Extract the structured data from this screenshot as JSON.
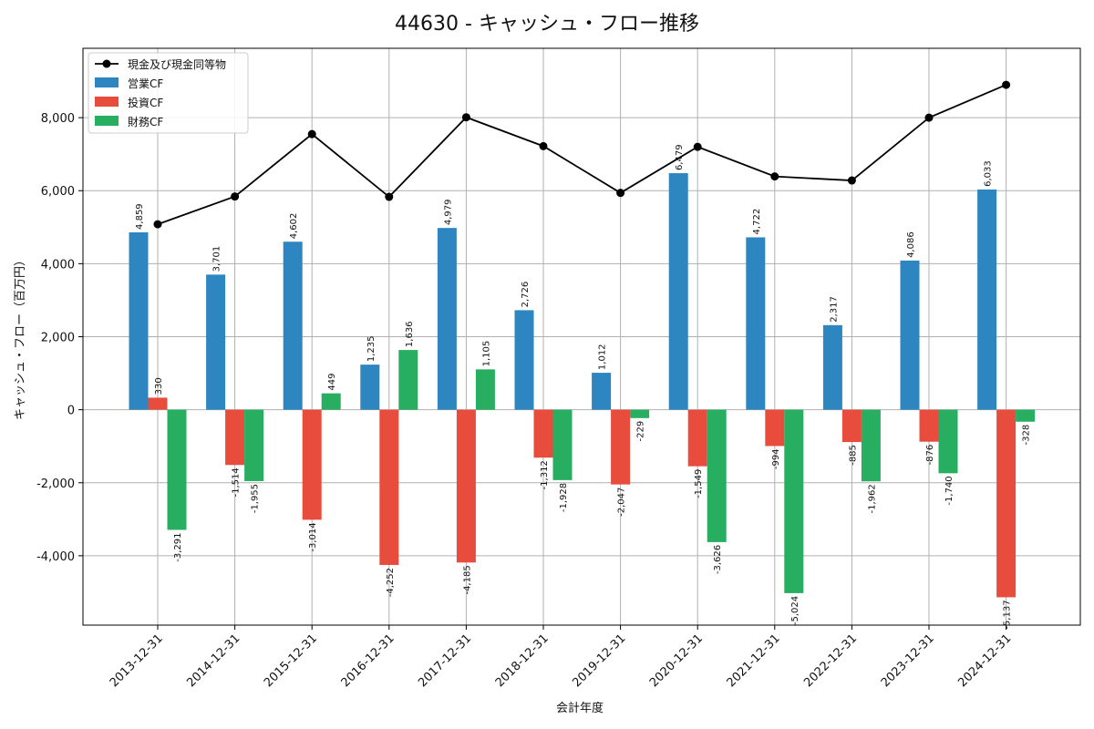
{
  "chart_data": {
    "type": "bar",
    "title": "44630 - キャッシュ・フロー推移",
    "xlabel": "会計年度",
    "ylabel": "キャッシュ・フロー（百万円）",
    "ylim": [
      -5900,
      9900
    ],
    "yticks": [
      -4000,
      -2000,
      0,
      2000,
      4000,
      6000,
      8000
    ],
    "ytick_labels": [
      "-4,000",
      "-2,000",
      "0",
      "2,000",
      "4,000",
      "6,000",
      "8,000"
    ],
    "grid": true,
    "legend_position": "top-left",
    "categories": [
      "2013-12-31",
      "2014-12-31",
      "2015-12-31",
      "2016-12-31",
      "2017-12-31",
      "2018-12-31",
      "2019-12-31",
      "2020-12-31",
      "2021-12-31",
      "2022-12-31",
      "2023-12-31",
      "2024-12-31"
    ],
    "series": [
      {
        "name": "営業CF",
        "color": "#2e86c1",
        "values": [
          4859,
          3701,
          4602,
          1235,
          4979,
          2726,
          1012,
          6479,
          4722,
          2317,
          4086,
          6033
        ],
        "labels": [
          "4,859",
          "3,701",
          "4,602",
          "1,235",
          "4,979",
          "2,726",
          "1,012",
          "6,479",
          "4,722",
          "2,317",
          "4,086",
          "6,033"
        ]
      },
      {
        "name": "投資CF",
        "color": "#e74c3c",
        "values": [
          330,
          -1514,
          -3014,
          -4252,
          -4185,
          -1312,
          -2047,
          -1549,
          -994,
          -885,
          -876,
          -5137
        ],
        "labels": [
          "330",
          "-1,514",
          "-3,014",
          "-4,252",
          "-4,185",
          "-1,312",
          "-2,047",
          "-1,549",
          "-994",
          "-885",
          "-876",
          "-5,137"
        ]
      },
      {
        "name": "財務CF",
        "color": "#27ae60",
        "values": [
          -3291,
          -1955,
          449,
          1636,
          1105,
          -1928,
          -229,
          -3626,
          -5024,
          -1962,
          -1740,
          -328
        ],
        "labels": [
          "-3,291",
          "-1,955",
          "449",
          "1,636",
          "1,105",
          "-1,928",
          "-229",
          "-3,626",
          "-5,024",
          "-1,962",
          "-1,740",
          "-328"
        ]
      }
    ],
    "line_series": {
      "name": "現金及び現金同等物",
      "color": "#000000",
      "values": [
        5080,
        5840,
        7550,
        5830,
        8010,
        7220,
        5940,
        7200,
        6390,
        6280,
        8000,
        8900
      ]
    }
  }
}
